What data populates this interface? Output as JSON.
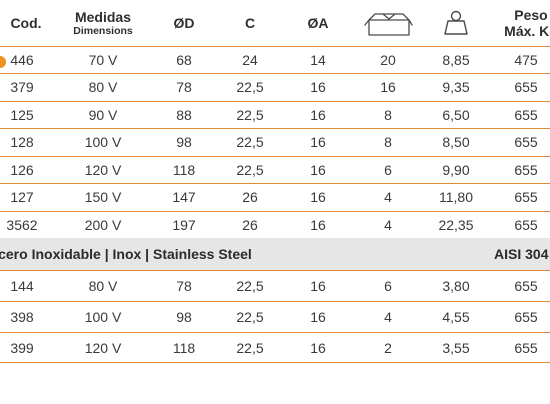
{
  "colors": {
    "rule": "#e08a3c",
    "section_bg": "#e6e6e6",
    "marker": "#f0901e",
    "text": "#3a3a3a"
  },
  "header": {
    "cod": "Cod.",
    "medidas": "Medidas",
    "dimensions": "Dimensions",
    "od": "ØD",
    "c": "C",
    "oa": "ØA",
    "box_icon": "box-icon",
    "weight_icon": "weight-icon",
    "peso": "Peso",
    "max_kg": "Máx. Kg"
  },
  "rows_top": [
    {
      "cod": "446",
      "medidas": "70 V",
      "od": "68",
      "c": "24",
      "oa": "14",
      "box": "20",
      "weight": "8,85",
      "peso": "475"
    },
    {
      "cod": "379",
      "medidas": "80 V",
      "od": "78",
      "c": "22,5",
      "oa": "16",
      "box": "16",
      "weight": "9,35",
      "peso": "655"
    },
    {
      "cod": "125",
      "medidas": "90 V",
      "od": "88",
      "c": "22,5",
      "oa": "16",
      "box": "8",
      "weight": "6,50",
      "peso": "655"
    },
    {
      "cod": "128",
      "medidas": "100 V",
      "od": "98",
      "c": "22,5",
      "oa": "16",
      "box": "8",
      "weight": "8,50",
      "peso": "655"
    },
    {
      "cod": "126",
      "medidas": "120 V",
      "od": "118",
      "c": "22,5",
      "oa": "16",
      "box": "6",
      "weight": "9,90",
      "peso": "655"
    },
    {
      "cod": "127",
      "medidas": "150 V",
      "od": "147",
      "c": "26",
      "oa": "16",
      "box": "4",
      "weight": "11,80",
      "peso": "655"
    },
    {
      "cod": "3562",
      "medidas": "200 V",
      "od": "197",
      "c": "26",
      "oa": "16",
      "box": "4",
      "weight": "22,35",
      "peso": "655"
    }
  ],
  "section": {
    "title": "Acero Inoxidable | Inox | Stainless Steel",
    "grade": "AISI 304"
  },
  "rows_bottom": [
    {
      "cod": "144",
      "medidas": "80 V",
      "od": "78",
      "c": "22,5",
      "oa": "16",
      "box": "6",
      "weight": "3,80",
      "peso": "655"
    },
    {
      "cod": "398",
      "medidas": "100 V",
      "od": "98",
      "c": "22,5",
      "oa": "16",
      "box": "4",
      "weight": "4,55",
      "peso": "655"
    },
    {
      "cod": "399",
      "medidas": "120 V",
      "od": "118",
      "c": "22,5",
      "oa": "16",
      "box": "2",
      "weight": "3,55",
      "peso": "655"
    }
  ]
}
